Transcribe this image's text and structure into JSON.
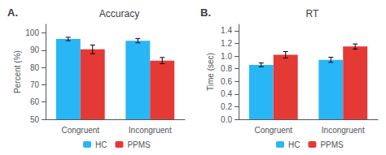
{
  "chart_data": [
    {
      "type": "bar",
      "title": "Accuracy",
      "ylabel": "Percent (%)",
      "annotation": "A.",
      "categories": [
        "Congruent",
        "Incongruent"
      ],
      "series": [
        {
          "name": "HC",
          "color": "#29b6f6",
          "values": [
            96.5,
            95.5
          ],
          "errors": [
            1.0,
            1.2
          ]
        },
        {
          "name": "PPMS",
          "color": "#e53935",
          "values": [
            90.5,
            84.0
          ],
          "errors": [
            2.5,
            1.8
          ]
        }
      ],
      "ylim": [
        50,
        105
      ],
      "yticks": [
        50,
        60,
        70,
        80,
        90,
        100
      ],
      "grid": false,
      "legend": "bottom"
    },
    {
      "type": "bar",
      "title": "RT",
      "ylabel": "Time (sec)",
      "annotation": "B.",
      "categories": [
        "Congruent",
        "Incongruent"
      ],
      "series": [
        {
          "name": "HC",
          "color": "#29b6f6",
          "values": [
            0.86,
            0.94
          ],
          "errors": [
            0.03,
            0.04
          ]
        },
        {
          "name": "PPMS",
          "color": "#e53935",
          "values": [
            1.02,
            1.15
          ],
          "errors": [
            0.05,
            0.04
          ]
        }
      ],
      "ylim": [
        0,
        1.5
      ],
      "yticks": [
        {
          "value": 0,
          "label": "0.0"
        },
        0.2,
        0.4,
        0.6,
        0.8,
        {
          "value": 1.0,
          "label": "1.0"
        },
        1.2,
        1.4
      ],
      "grid": false,
      "legend": "bottom"
    }
  ]
}
